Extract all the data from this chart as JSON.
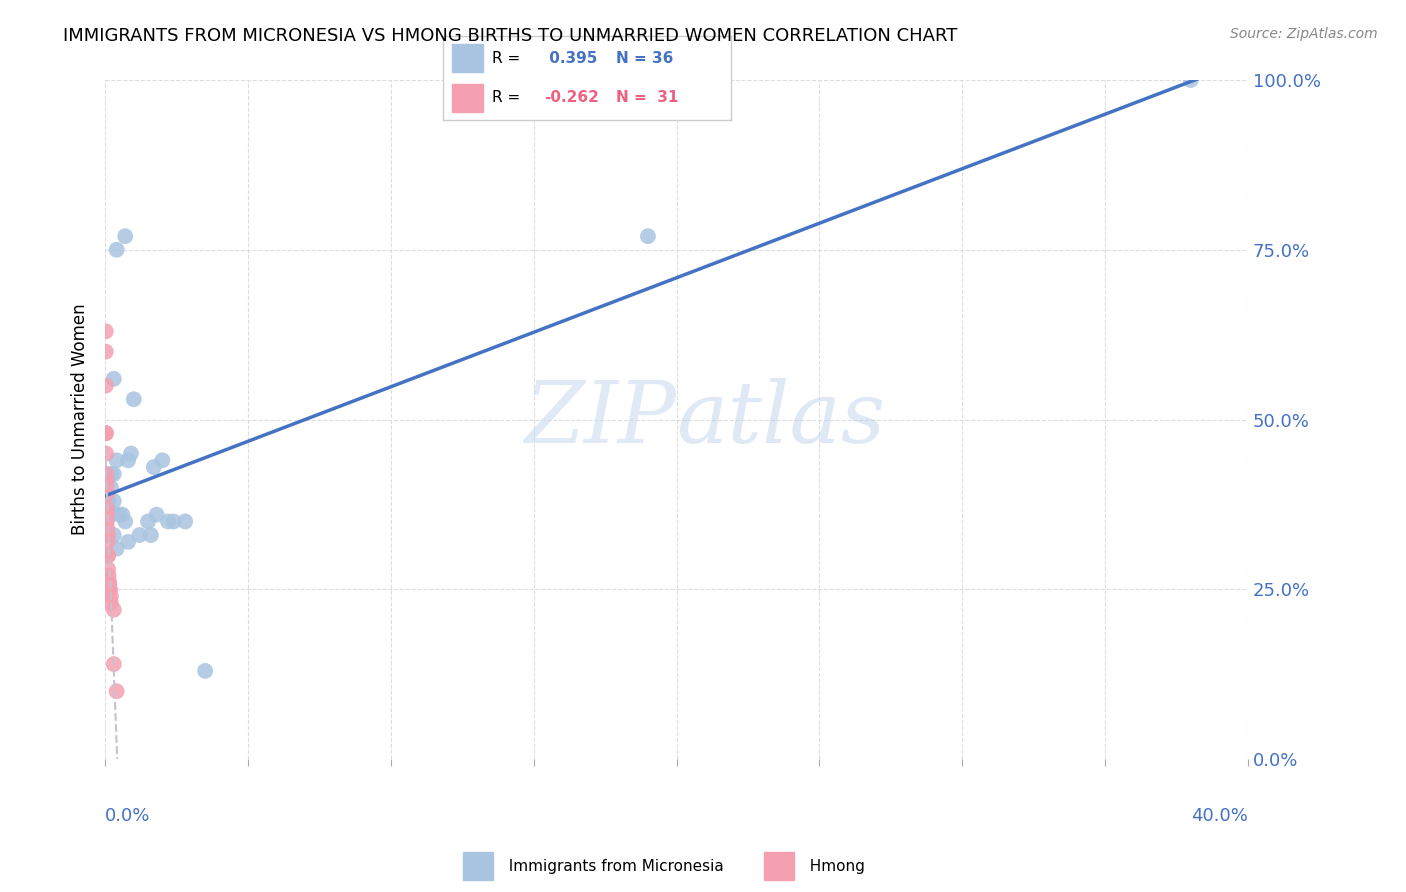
{
  "title": "IMMIGRANTS FROM MICRONESIA VS HMONG BIRTHS TO UNMARRIED WOMEN CORRELATION CHART",
  "source": "Source: ZipAtlas.com",
  "ylabel_label": "Births to Unmarried Women",
  "r_micronesia": 0.395,
  "n_micronesia": 36,
  "r_hmong": -0.262,
  "n_hmong": 31,
  "micronesia_color": "#a8c4e0",
  "hmong_color": "#f4a0b0",
  "trendline_micronesia_color": "#4472c4",
  "trendline_hmong_color": "#c8c0d0",
  "watermark_zip": "ZIP",
  "watermark_atlas": "atlas",
  "micronesia_x": [
    0.001,
    0.003,
    0.007,
    0.004,
    0.003,
    0.01,
    0.008,
    0.004,
    0.003,
    0.002,
    0.002,
    0.001,
    0.001,
    0.002,
    0.005,
    0.006,
    0.007,
    0.015,
    0.012,
    0.016,
    0.008,
    0.009,
    0.02,
    0.017,
    0.018,
    0.024,
    0.022,
    0.028,
    0.035,
    0.19,
    0.38,
    0.001,
    0.003,
    0.004,
    0.0005,
    0.0008
  ],
  "micronesia_y": [
    0.38,
    0.38,
    0.77,
    0.75,
    0.56,
    0.53,
    0.44,
    0.44,
    0.42,
    0.42,
    0.4,
    0.38,
    0.37,
    0.36,
    0.36,
    0.36,
    0.35,
    0.35,
    0.33,
    0.33,
    0.32,
    0.45,
    0.44,
    0.43,
    0.36,
    0.35,
    0.35,
    0.35,
    0.13,
    0.77,
    1.0,
    0.33,
    0.33,
    0.31,
    0.38,
    0.38
  ],
  "hmong_x": [
    0.0002,
    0.0002,
    0.0002,
    0.0002,
    0.0003,
    0.0003,
    0.0003,
    0.0004,
    0.0004,
    0.0005,
    0.0005,
    0.0005,
    0.0006,
    0.0006,
    0.0007,
    0.0007,
    0.0008,
    0.0009,
    0.001,
    0.001,
    0.001,
    0.0012,
    0.0012,
    0.0014,
    0.0015,
    0.0017,
    0.002,
    0.002,
    0.003,
    0.003,
    0.004
  ],
  "hmong_y": [
    0.63,
    0.6,
    0.55,
    0.48,
    0.48,
    0.45,
    0.42,
    0.41,
    0.4,
    0.39,
    0.37,
    0.36,
    0.36,
    0.35,
    0.34,
    0.33,
    0.33,
    0.32,
    0.3,
    0.3,
    0.28,
    0.27,
    0.26,
    0.26,
    0.25,
    0.25,
    0.24,
    0.23,
    0.22,
    0.14,
    0.1
  ],
  "xmin": 0.0,
  "xmax": 0.4,
  "ymin": 0.0,
  "ymax": 1.0,
  "yticks": [
    0.0,
    0.25,
    0.5,
    0.75,
    1.0
  ],
  "ytick_labels": [
    "0.0%",
    "25.0%",
    "50.0%",
    "75.0%",
    "100.0%"
  ],
  "xtick_positions": [
    0.0,
    0.05,
    0.1,
    0.15,
    0.2,
    0.25,
    0.3,
    0.35,
    0.4
  ],
  "background_color": "#ffffff",
  "grid_color": "#dddddd"
}
